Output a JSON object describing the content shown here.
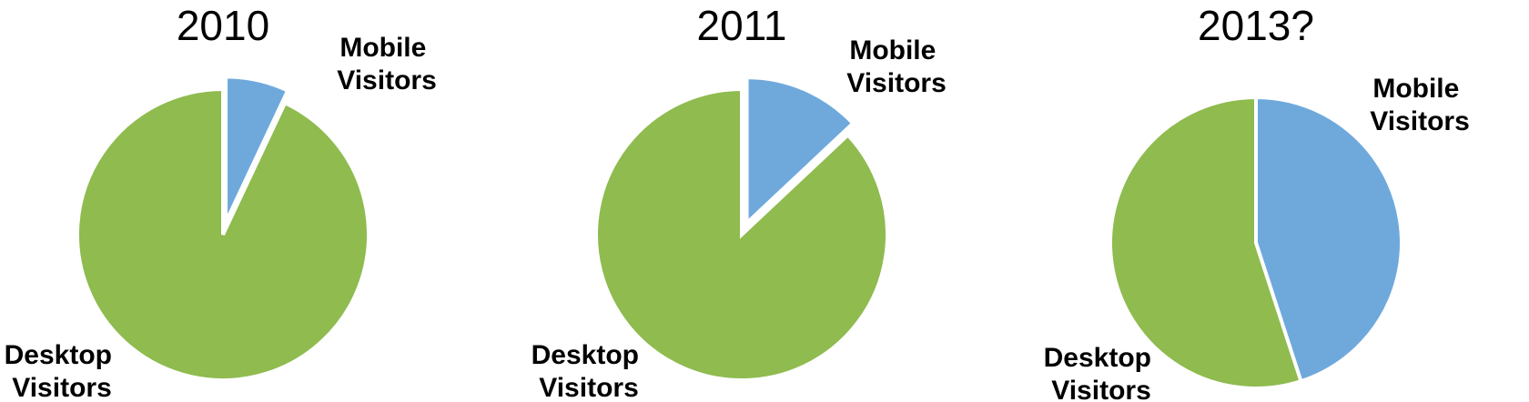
{
  "colors": {
    "mobile": "#6fa9dc",
    "desktop": "#8fbb4f",
    "slice_border": "#ffffff"
  },
  "chart_data": [
    {
      "type": "pie",
      "title": "2010",
      "slices": [
        {
          "label_lines": [
            "Mobile",
            "Visitors"
          ],
          "value": 7,
          "color_key": "mobile",
          "exploded": true
        },
        {
          "label_lines": [
            "Desktop",
            "Visitors"
          ],
          "value": 93,
          "color_key": "desktop",
          "exploded": false
        }
      ]
    },
    {
      "type": "pie",
      "title": "2011",
      "slices": [
        {
          "label_lines": [
            "Mobile",
            "Visitors"
          ],
          "value": 13,
          "color_key": "mobile",
          "exploded": true
        },
        {
          "label_lines": [
            "Desktop",
            "Visitors"
          ],
          "value": 87,
          "color_key": "desktop",
          "exploded": false
        }
      ]
    },
    {
      "type": "pie",
      "title": "2013?",
      "slices": [
        {
          "label_lines": [
            "Mobile",
            "Visitors"
          ],
          "value": 45,
          "color_key": "mobile",
          "exploded": false
        },
        {
          "label_lines": [
            "Desktop",
            "Visitors"
          ],
          "value": 55,
          "color_key": "desktop",
          "exploded": false
        }
      ]
    }
  ]
}
